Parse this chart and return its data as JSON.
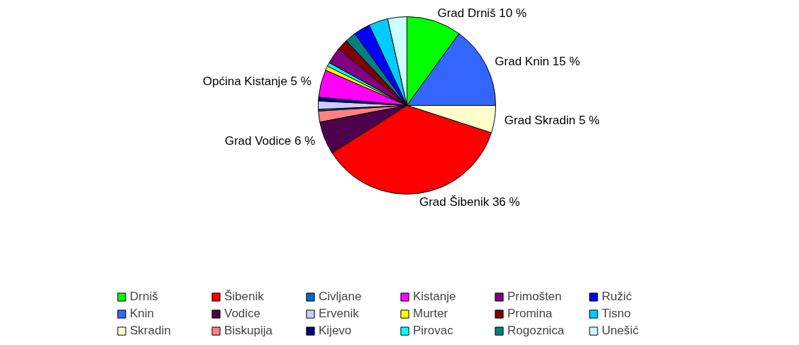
{
  "chart_data": {
    "type": "pie",
    "categories": [
      "Drniš",
      "Knin",
      "Skradin",
      "Šibenik",
      "Vodice",
      "Biskupija",
      "Civljane",
      "Ervenik",
      "Kijevo",
      "Kistanje",
      "Murter",
      "Pirovac",
      "Primošten",
      "Promina",
      "Rogoznica",
      "Ružić",
      "Tisno",
      "Unešić"
    ],
    "values": [
      10,
      15,
      5,
      36,
      6,
      2,
      0.3,
      1.5,
      0.7,
      5,
      0.8,
      0.7,
      3,
      2,
      2,
      3,
      3.5,
      3.5
    ],
    "colors": [
      "#00ff00",
      "#3366ff",
      "#ffffcc",
      "#ff0000",
      "#4d004d",
      "#ff8080",
      "#0066cc",
      "#ccccff",
      "#000080",
      "#ff00ff",
      "#ffff00",
      "#00ffff",
      "#800080",
      "#800000",
      "#008080",
      "#0000ff",
      "#00ccff",
      "#ccffff"
    ],
    "value_labels": [
      "Grad Drniš 10 %",
      "Grad Knin 15 %",
      "Grad Skradin 5 %",
      "Grad Šibenik 36 %",
      "Grad Vodice 6 %",
      null,
      null,
      null,
      null,
      "Općina Kistanje 5 %",
      null,
      null,
      null,
      null,
      null,
      null,
      null,
      null
    ],
    "legend": "bottom"
  }
}
